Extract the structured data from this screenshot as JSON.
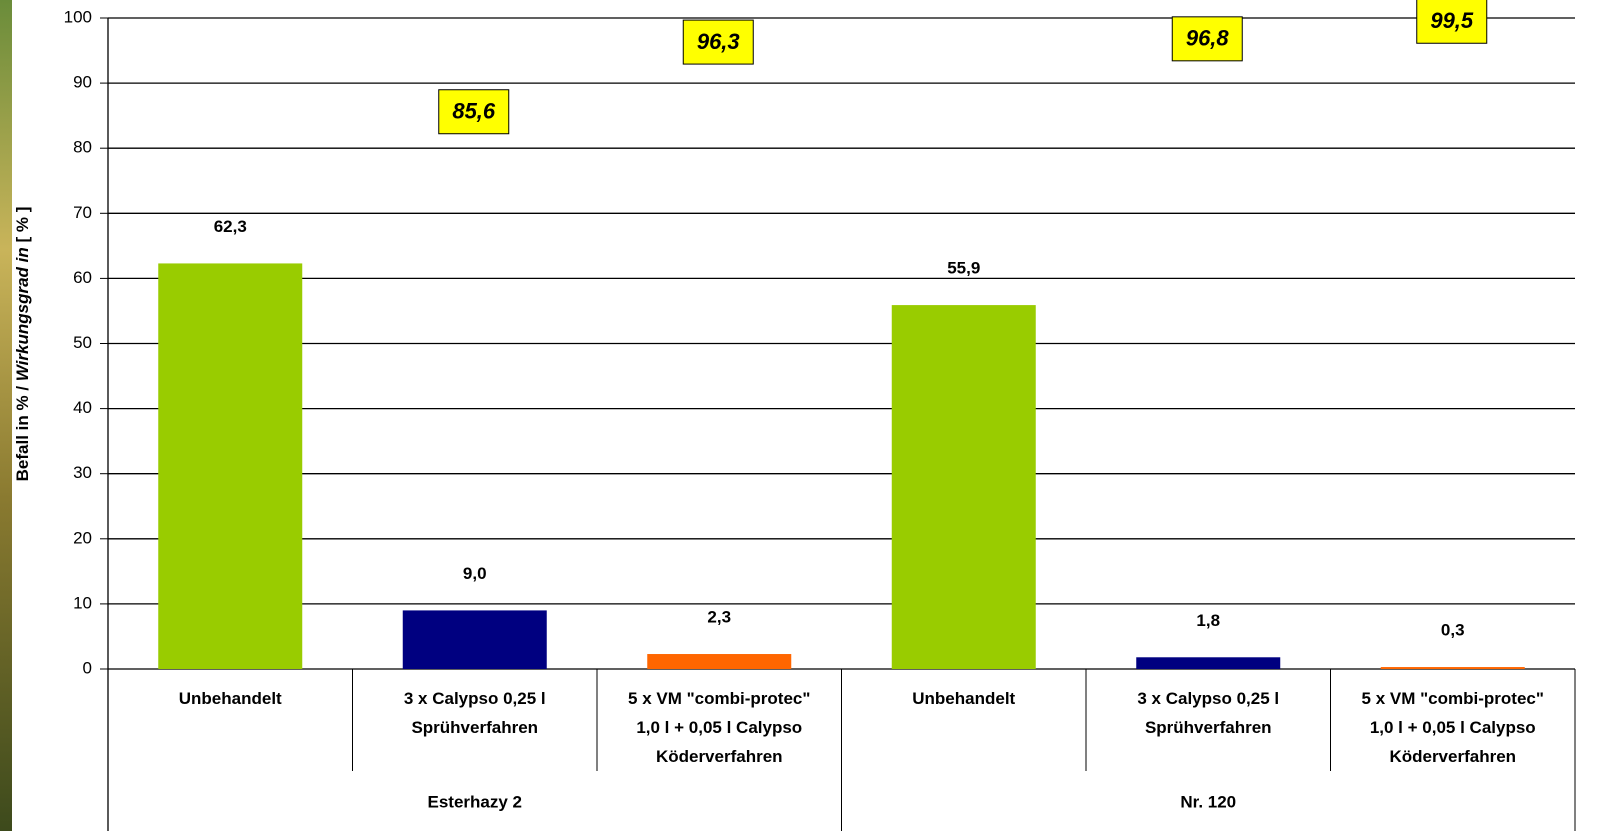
{
  "chart_data": {
    "type": "bar",
    "ylabel_parts": [
      "Befall in % / ",
      "Wirkungsgrad in",
      " [ % ]"
    ],
    "categories": [
      [
        "Unbehandelt"
      ],
      [
        "3 x Calypso 0,25 l",
        "Sprühverfahren"
      ],
      [
        "5 x VM \"combi-protec\"",
        "1,0 l + 0,05 l Calypso",
        "Köderverfahren"
      ],
      [
        "Unbehandelt"
      ],
      [
        "3 x Calypso 0,25 l",
        "Sprühverfahren"
      ],
      [
        "5 x VM \"combi-protec\"",
        "1,0 l + 0,05 l Calypso",
        "Köderverfahren"
      ]
    ],
    "groups": [
      "Esterhazy 2",
      "Nr. 120"
    ],
    "values": [
      62.3,
      9.0,
      2.3,
      55.9,
      1.8,
      0.3
    ],
    "value_labels": [
      "62,3",
      "9,0",
      "2,3",
      "55,9",
      "1,8",
      "0,3"
    ],
    "colors": [
      "#99cc00",
      "#000080",
      "#ff6600",
      "#99cc00",
      "#000080",
      "#ff6600"
    ],
    "efficacy": {
      "values": [
        null,
        85.6,
        96.3,
        null,
        96.8,
        99.5
      ],
      "value_labels": [
        null,
        "85,6",
        "96,3",
        null,
        "96,8",
        "99,5"
      ],
      "color": "#ffff00"
    },
    "ylim": [
      0,
      100
    ],
    "yticks": [
      0,
      10,
      20,
      30,
      40,
      50,
      60,
      70,
      80,
      90,
      100
    ],
    "grid": true
  }
}
